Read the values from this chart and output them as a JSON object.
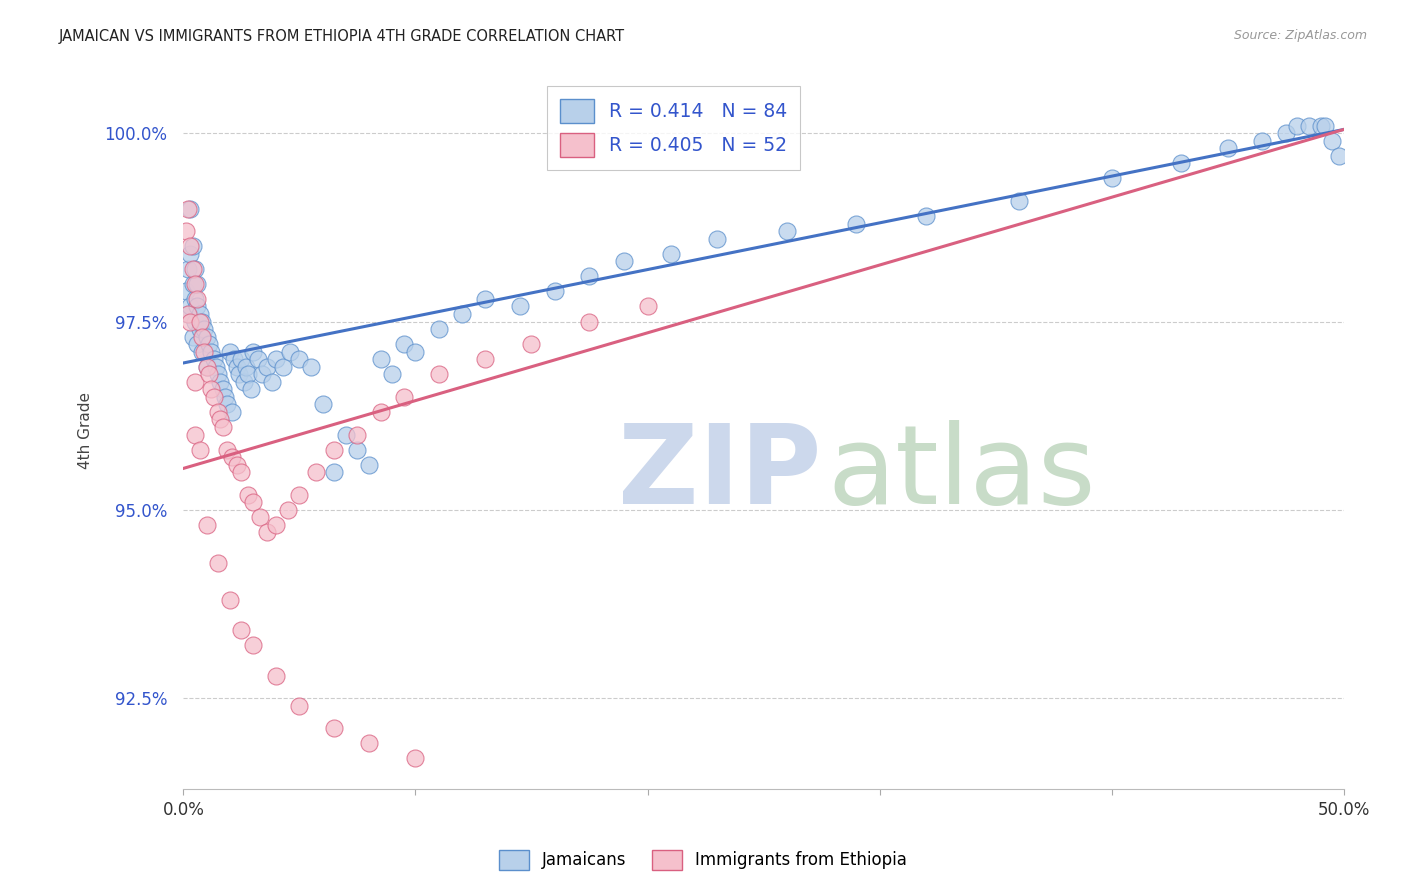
{
  "title": "JAMAICAN VS IMMIGRANTS FROM ETHIOPIA 4TH GRADE CORRELATION CHART",
  "source": "Source: ZipAtlas.com",
  "ylabel": "4th Grade",
  "x_min": 0.0,
  "x_max": 0.5,
  "y_min": 0.913,
  "y_max": 1.008,
  "y_ticks": [
    0.925,
    0.95,
    0.975,
    1.0
  ],
  "y_tick_labels": [
    "92.5%",
    "95.0%",
    "97.5%",
    "100.0%"
  ],
  "x_ticks": [
    0.0,
    0.1,
    0.2,
    0.3,
    0.4,
    0.5
  ],
  "x_tick_labels": [
    "0.0%",
    "",
    "",
    "",
    "",
    "50.0%"
  ],
  "legend_labels_bottom": [
    "Jamaicans",
    "Immigrants from Ethiopia"
  ],
  "blue_scatter_face": "#b8d0ea",
  "blue_scatter_edge": "#5b8fcc",
  "pink_scatter_face": "#f5c0cc",
  "pink_scatter_edge": "#d96080",
  "blue_line": "#4472c4",
  "pink_line": "#d96080",
  "watermark_zip_color": "#ccd8ec",
  "watermark_atlas_color": "#c8dcc8",
  "legend_label_color": "#3355cc",
  "legend_box_blue_face": "#b8d0ea",
  "legend_box_blue_edge": "#5b8fcc",
  "legend_box_pink_face": "#f5c0cc",
  "legend_box_pink_edge": "#d96080",
  "blue_line_intercept": 0.9695,
  "blue_line_slope": 0.062,
  "pink_line_intercept": 0.9555,
  "pink_line_slope": 0.09,
  "jam_x": [
    0.001,
    0.002,
    0.002,
    0.003,
    0.003,
    0.004,
    0.004,
    0.005,
    0.005,
    0.006,
    0.006,
    0.007,
    0.007,
    0.008,
    0.008,
    0.009,
    0.01,
    0.01,
    0.011,
    0.012,
    0.013,
    0.014,
    0.015,
    0.016,
    0.017,
    0.018,
    0.019,
    0.02,
    0.021,
    0.022,
    0.023,
    0.024,
    0.025,
    0.026,
    0.027,
    0.028,
    0.029,
    0.03,
    0.032,
    0.034,
    0.036,
    0.038,
    0.04,
    0.043,
    0.046,
    0.05,
    0.055,
    0.06,
    0.065,
    0.07,
    0.075,
    0.08,
    0.085,
    0.09,
    0.095,
    0.1,
    0.11,
    0.12,
    0.13,
    0.145,
    0.16,
    0.175,
    0.19,
    0.21,
    0.23,
    0.26,
    0.29,
    0.32,
    0.36,
    0.4,
    0.43,
    0.45,
    0.465,
    0.475,
    0.48,
    0.485,
    0.49,
    0.492,
    0.495,
    0.498,
    0.003,
    0.004,
    0.005,
    0.006
  ],
  "jam_y": [
    0.979,
    0.982,
    0.976,
    0.984,
    0.977,
    0.98,
    0.973,
    0.978,
    0.975,
    0.977,
    0.972,
    0.976,
    0.974,
    0.975,
    0.971,
    0.974,
    0.973,
    0.969,
    0.972,
    0.971,
    0.97,
    0.969,
    0.968,
    0.967,
    0.966,
    0.965,
    0.964,
    0.971,
    0.963,
    0.97,
    0.969,
    0.968,
    0.97,
    0.967,
    0.969,
    0.968,
    0.966,
    0.971,
    0.97,
    0.968,
    0.969,
    0.967,
    0.97,
    0.969,
    0.971,
    0.97,
    0.969,
    0.964,
    0.955,
    0.96,
    0.958,
    0.956,
    0.97,
    0.968,
    0.972,
    0.971,
    0.974,
    0.976,
    0.978,
    0.977,
    0.979,
    0.981,
    0.983,
    0.984,
    0.986,
    0.987,
    0.988,
    0.989,
    0.991,
    0.994,
    0.996,
    0.998,
    0.999,
    1.0,
    1.001,
    1.001,
    1.001,
    1.001,
    0.999,
    0.997,
    0.99,
    0.985,
    0.982,
    0.98
  ],
  "eth_x": [
    0.001,
    0.002,
    0.002,
    0.003,
    0.003,
    0.004,
    0.005,
    0.005,
    0.006,
    0.007,
    0.008,
    0.009,
    0.01,
    0.011,
    0.012,
    0.013,
    0.015,
    0.016,
    0.017,
    0.019,
    0.021,
    0.023,
    0.025,
    0.028,
    0.03,
    0.033,
    0.036,
    0.04,
    0.045,
    0.05,
    0.057,
    0.065,
    0.075,
    0.085,
    0.095,
    0.11,
    0.13,
    0.15,
    0.175,
    0.2,
    0.005,
    0.007,
    0.01,
    0.015,
    0.02,
    0.025,
    0.03,
    0.04,
    0.05,
    0.065,
    0.08,
    0.1
  ],
  "eth_y": [
    0.987,
    0.99,
    0.976,
    0.985,
    0.975,
    0.982,
    0.98,
    0.967,
    0.978,
    0.975,
    0.973,
    0.971,
    0.969,
    0.968,
    0.966,
    0.965,
    0.963,
    0.962,
    0.961,
    0.958,
    0.957,
    0.956,
    0.955,
    0.952,
    0.951,
    0.949,
    0.947,
    0.948,
    0.95,
    0.952,
    0.955,
    0.958,
    0.96,
    0.963,
    0.965,
    0.968,
    0.97,
    0.972,
    0.975,
    0.977,
    0.96,
    0.958,
    0.948,
    0.943,
    0.938,
    0.934,
    0.932,
    0.928,
    0.924,
    0.921,
    0.919,
    0.917
  ]
}
